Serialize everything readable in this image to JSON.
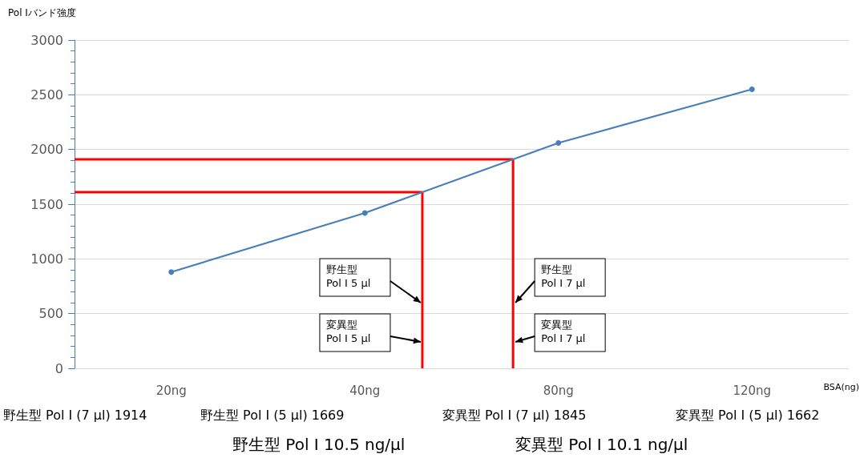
{
  "chart_data": {
    "type": "line",
    "ylabel": "Pol Iバンド強度",
    "xlabel": "BSA(ng)",
    "categories": [
      "20ng",
      "40ng",
      "80ng",
      "120ng"
    ],
    "series": [
      {
        "color": "#4a7ebb",
        "values": [
          880,
          1420,
          2060,
          2550
        ]
      }
    ],
    "ylim": [
      0,
      3000
    ],
    "yticks": [
      0,
      500,
      1000,
      1500,
      2000,
      2500,
      3000
    ],
    "grid": "y",
    "marker": "circle",
    "line_style": "solid",
    "ref_lines": [
      {
        "axis": "y",
        "value": 1610,
        "color": "#ff0000"
      },
      {
        "axis": "y",
        "value": 1910,
        "color": "#ff0000"
      }
    ],
    "annotations": [
      "野生型\nPol I 5 µl",
      "変異型\n Pol I 5 µl",
      "野生型\nPol I 7 µl",
      "変異型\n Pol I 7 µl",
      "野生型 Pol I (7 µl) 1914",
      "野生型 Pol I (5 µl) 1669",
      "変異型 Pol I (7 µl) 1845",
      "変異型 Pol I (5 µl) 1662",
      "野生型 Pol I 10.5 ng/µl",
      "変異型 Pol I 10.1 ng/µl"
    ]
  }
}
